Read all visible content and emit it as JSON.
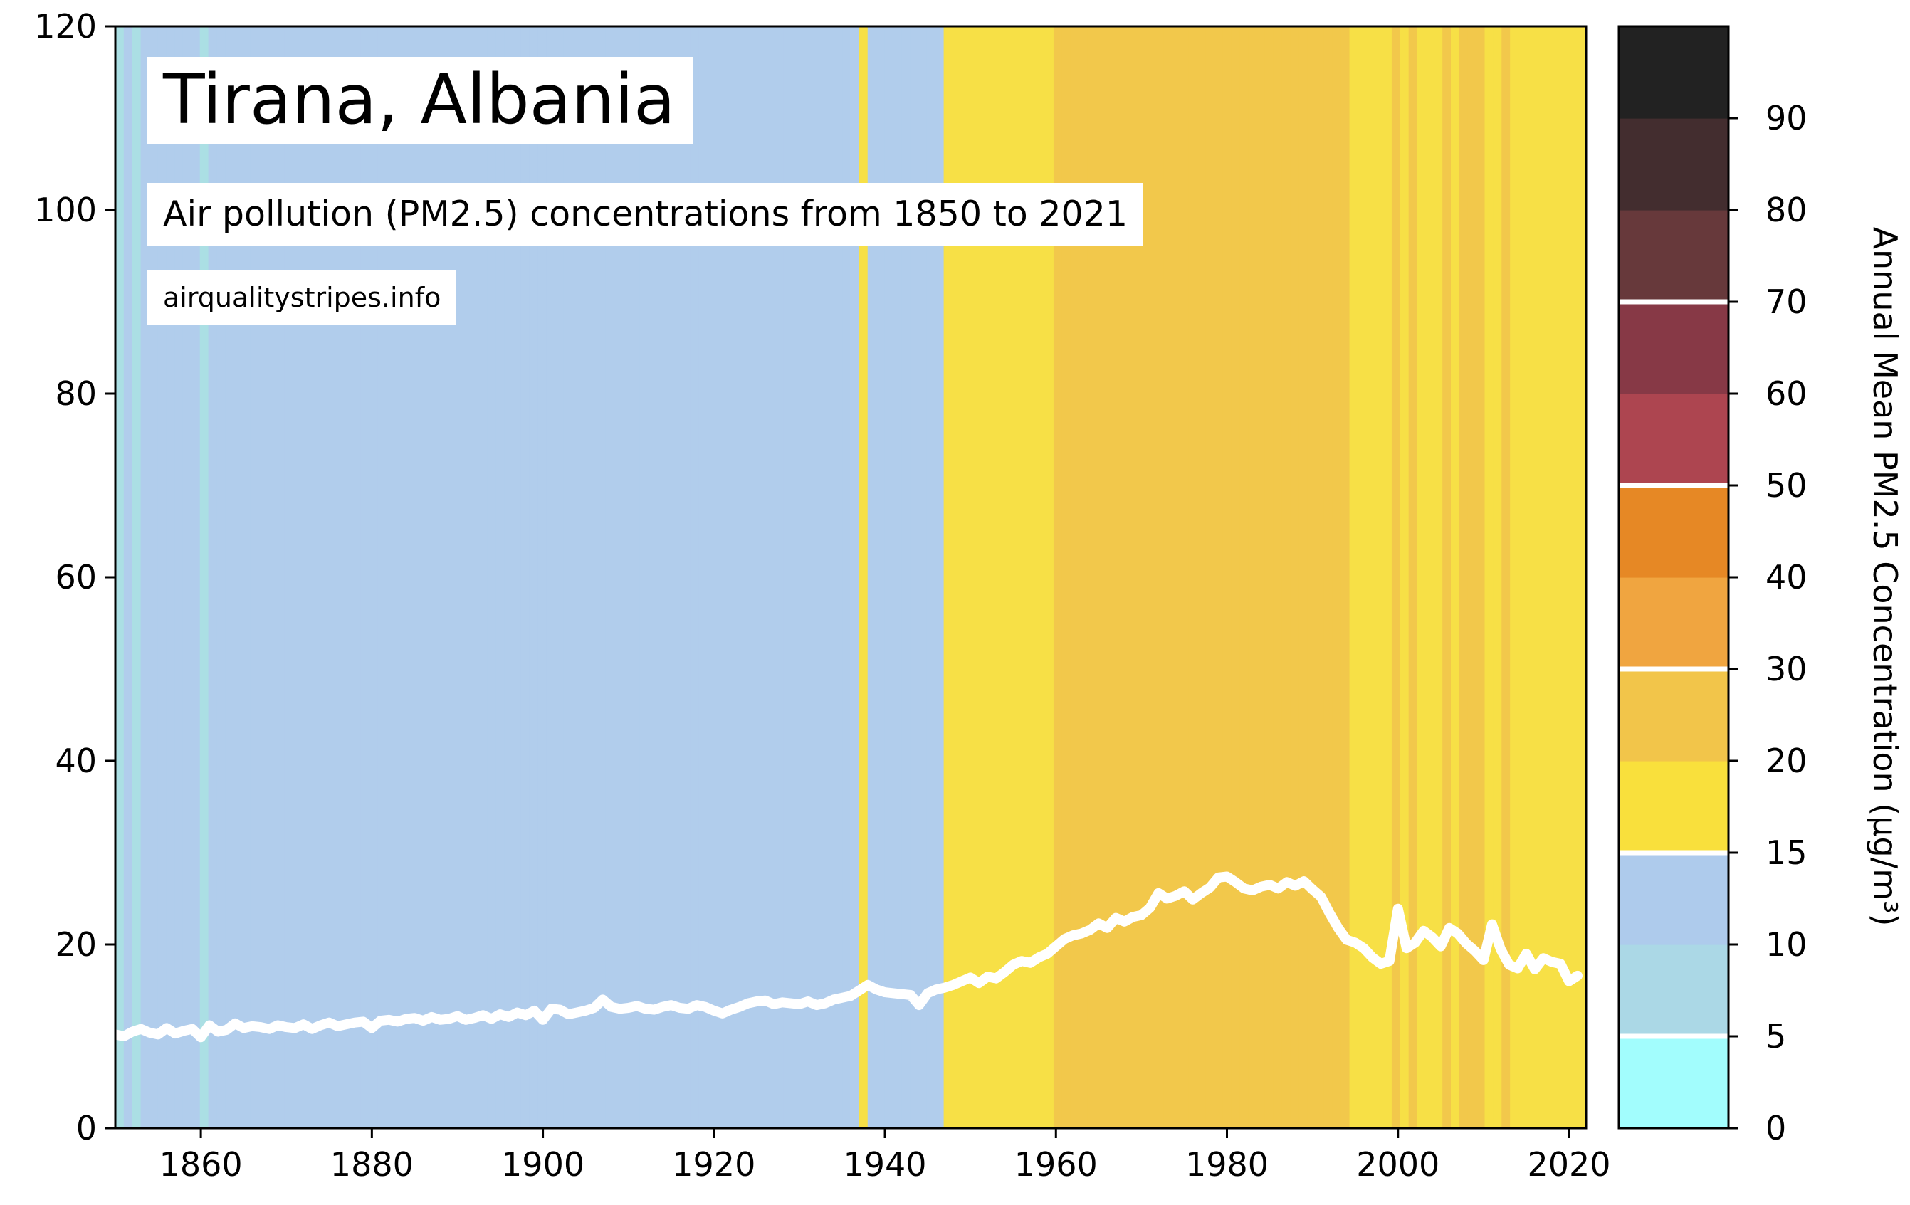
{
  "title": "Tirana, Albania",
  "subtitle": "Air pollution (PM2.5) concentrations from 1850 to 2021",
  "source": "airqualitystripes.info",
  "colorbar_label": "Annual Mean PM2.5 Concentration (µg/m³)",
  "chart_data": {
    "type": "line",
    "xlim": [
      1850,
      2022
    ],
    "ylim": [
      0,
      120
    ],
    "x_ticks": [
      1860,
      1880,
      1900,
      1920,
      1940,
      1960,
      1980,
      2000,
      2020
    ],
    "y_ticks": [
      0,
      20,
      40,
      60,
      80,
      100,
      120
    ],
    "line_color": "#ffffff",
    "grid": false,
    "series": [
      {
        "x": [
          1850,
          1851,
          1852,
          1853,
          1854,
          1855,
          1856,
          1857,
          1858,
          1859,
          1860,
          1861,
          1862,
          1863,
          1864,
          1865,
          1866,
          1867,
          1868,
          1869,
          1870,
          1871,
          1872,
          1873,
          1874,
          1875,
          1876,
          1877,
          1878,
          1879,
          1880,
          1881,
          1882,
          1883,
          1884,
          1885,
          1886,
          1887,
          1888,
          1889,
          1890,
          1891,
          1892,
          1893,
          1894,
          1895,
          1896,
          1897,
          1898,
          1899,
          1900,
          1901,
          1902,
          1903,
          1904,
          1905,
          1906,
          1907,
          1908,
          1909,
          1910,
          1911,
          1912,
          1913,
          1914,
          1915,
          1916,
          1917,
          1918,
          1919,
          1920,
          1921,
          1922,
          1923,
          1924,
          1925,
          1926,
          1927,
          1928,
          1929,
          1930,
          1931,
          1932,
          1933,
          1934,
          1935,
          1936,
          1937,
          1938,
          1939,
          1940,
          1941,
          1942,
          1943,
          1944,
          1945,
          1946,
          1947,
          1948,
          1949,
          1950,
          1951,
          1952,
          1953,
          1954,
          1955,
          1956,
          1957,
          1958,
          1959,
          1960,
          1961,
          1962,
          1963,
          1964,
          1965,
          1966,
          1967,
          1968,
          1969,
          1970,
          1971,
          1972,
          1973,
          1974,
          1975,
          1976,
          1977,
          1978,
          1979,
          1980,
          1981,
          1982,
          1983,
          1984,
          1985,
          1986,
          1987,
          1988,
          1989,
          1990,
          1991,
          1992,
          1993,
          1994,
          1995,
          1996,
          1997,
          1998,
          1999,
          2000,
          2001,
          2002,
          2003,
          2004,
          2005,
          2006,
          2007,
          2008,
          2009,
          2010,
          2011,
          2012,
          2013,
          2014,
          2015,
          2016,
          2017,
          2018,
          2019,
          2020,
          2021
        ],
        "y": [
          10.2,
          10.0,
          10.5,
          10.8,
          10.4,
          10.2,
          10.9,
          10.3,
          10.6,
          10.8,
          9.9,
          11.2,
          10.5,
          10.7,
          11.4,
          10.9,
          11.1,
          11.0,
          10.8,
          11.2,
          11.0,
          10.9,
          11.3,
          10.8,
          11.2,
          11.5,
          11.1,
          11.3,
          11.5,
          11.6,
          10.9,
          11.7,
          11.8,
          11.6,
          11.9,
          12.0,
          11.7,
          12.1,
          11.8,
          11.9,
          12.2,
          11.8,
          12.0,
          12.3,
          11.9,
          12.4,
          12.1,
          12.6,
          12.3,
          12.8,
          11.8,
          13.0,
          12.9,
          12.4,
          12.6,
          12.8,
          13.1,
          14.0,
          13.2,
          13.0,
          13.1,
          13.3,
          13.0,
          12.9,
          13.2,
          13.4,
          13.1,
          13.0,
          13.4,
          13.2,
          12.8,
          12.5,
          12.9,
          13.2,
          13.6,
          13.8,
          13.9,
          13.5,
          13.7,
          13.6,
          13.5,
          13.8,
          13.4,
          13.6,
          14.0,
          14.2,
          14.4,
          15.0,
          15.6,
          15.1,
          14.8,
          14.7,
          14.6,
          14.5,
          13.4,
          14.7,
          15.1,
          15.3,
          15.6,
          16.0,
          16.4,
          15.8,
          16.5,
          16.3,
          17.0,
          17.8,
          18.2,
          18.0,
          18.6,
          19.0,
          19.8,
          20.6,
          21.0,
          21.2,
          21.6,
          22.3,
          21.8,
          22.9,
          22.5,
          23.0,
          23.2,
          24.0,
          25.6,
          25.0,
          25.3,
          25.8,
          24.9,
          25.6,
          26.2,
          27.3,
          27.4,
          26.8,
          26.1,
          25.9,
          26.3,
          26.5,
          26.1,
          26.8,
          26.4,
          26.9,
          26.0,
          25.2,
          23.4,
          21.8,
          20.5,
          20.2,
          19.6,
          18.6,
          17.9,
          18.2,
          23.9,
          19.6,
          20.2,
          21.5,
          20.8,
          19.8,
          21.8,
          21.2,
          20.1,
          19.3,
          18.3,
          22.2,
          19.5,
          17.8,
          17.4,
          19.0,
          17.3,
          18.5,
          18.1,
          17.9,
          16.0,
          16.6
        ]
      }
    ],
    "stripe_colors": [
      "#abdfe4",
      "#b1cdec",
      "#abdfe4",
      "#b1cdec",
      "#b1cdec",
      "#b1cdec",
      "#b1cdec",
      "#b1cdec",
      "#b1cdec",
      "#b1cdec",
      "#abdfe4",
      "#b1cdec",
      "#b1cdec",
      "#b1cdec",
      "#b1cdec",
      "#b1cdec",
      "#b1cdec",
      "#b1cdec",
      "#b1cdec",
      "#b1cdec",
      "#b1cdec",
      "#b1cdec",
      "#b1cdec",
      "#b1cdec",
      "#b1cdec",
      "#b1cdec",
      "#b1cdec",
      "#b1cdec",
      "#b1cdec",
      "#b1cdec",
      "#b1cdec",
      "#b1cdec",
      "#b1cdec",
      "#b1cdec",
      "#b1cdec",
      "#b1cdec",
      "#b1cdec",
      "#b1cdec",
      "#b1cdec",
      "#b1cdec",
      "#b1cdec",
      "#b1cdec",
      "#b1cdec",
      "#b1cdec",
      "#b1cdec",
      "#b1cdec",
      "#b1cdec",
      "#b1cdec",
      "#b1cdec",
      "#b1cdec",
      "#b1cdec",
      "#b1cdec",
      "#b1cdec",
      "#b1cdec",
      "#b1cdec",
      "#b1cdec",
      "#b1cdec",
      "#b1cdec",
      "#b1cdec",
      "#b1cdec",
      "#b1cdec",
      "#b1cdec",
      "#b1cdec",
      "#b1cdec",
      "#b1cdec",
      "#b1cdec",
      "#b1cdec",
      "#b1cdec",
      "#b1cdec",
      "#b1cdec",
      "#b1cdec",
      "#b1cdec",
      "#b1cdec",
      "#b1cdec",
      "#b1cdec",
      "#b1cdec",
      "#b1cdec",
      "#b1cdec",
      "#b1cdec",
      "#b1cdec",
      "#b1cdec",
      "#b1cdec",
      "#b1cdec",
      "#b1cdec",
      "#b1cdec",
      "#b1cdec",
      "#b1cdec",
      "#b1cdec",
      "#f7e046",
      "#b1cdec",
      "#b1cdec",
      "#b1cdec",
      "#b1cdec",
      "#b1cdec",
      "#b1cdec",
      "#b1cdec",
      "#b1cdec",
      "#b1cdec",
      "#f7e046",
      "#f7e046",
      "#f7e046",
      "#f7e046",
      "#f7e046",
      "#f7e046",
      "#f7e046",
      "#f7e046",
      "#f7e046",
      "#f7e046",
      "#f7e046",
      "#f7e046",
      "#f7e046",
      "#f2c84b",
      "#f2c84b",
      "#f2c84b",
      "#f2c84b",
      "#f2c84b",
      "#f2c84b",
      "#f2c84b",
      "#f2c84b",
      "#f2c84b",
      "#f2c84b",
      "#f2c84b",
      "#f2c84b",
      "#f2c84b",
      "#f2c84b",
      "#f2c84b",
      "#f2c84b",
      "#f2c84b",
      "#f2c84b",
      "#f2c84b",
      "#f2c84b",
      "#f2c84b",
      "#f2c84b",
      "#f2c84b",
      "#f2c84b",
      "#f2c84b",
      "#f2c84b",
      "#f2c84b",
      "#f2c84b",
      "#f2c84b",
      "#f2c84b",
      "#f2c84b",
      "#f2c84b",
      "#f2c84b",
      "#f2c84b",
      "#f2c84b",
      "#f7e046",
      "#f7e046",
      "#f7e046",
      "#f7e046",
      "#f7e046",
      "#f2c84b",
      "#f7e046",
      "#f2c84b",
      "#f7e046",
      "#f7e046",
      "#f7e046",
      "#f2c84b",
      "#f7e046",
      "#f2c84b",
      "#f2c84b",
      "#f2c84b",
      "#f7e046",
      "#f7e046",
      "#f2c84b",
      "#f7e046",
      "#f7e046",
      "#f7e046",
      "#f7e046",
      "#f7e046",
      "#f7e046",
      "#f7e046",
      "#f7e046",
      "#f7e046"
    ],
    "colorbar": {
      "tick_values": [
        0,
        5,
        10,
        15,
        20,
        30,
        40,
        50,
        60,
        70,
        80,
        90
      ],
      "tick_labels": [
        "0",
        "5",
        "10",
        "15",
        "20",
        "30",
        "40",
        "50",
        "60",
        "70",
        "80",
        "90"
      ],
      "bands": [
        {
          "from": 0,
          "to": 5,
          "color": "#a2fdfd"
        },
        {
          "from": 5,
          "to": 10,
          "color": "#abd8e6"
        },
        {
          "from": 10,
          "to": 15,
          "color": "#aecbec"
        },
        {
          "from": 15,
          "to": 20,
          "color": "#f9e03c"
        },
        {
          "from": 20,
          "to": 30,
          "color": "#f2c54a"
        },
        {
          "from": 30,
          "to": 40,
          "color": "#f0a540"
        },
        {
          "from": 40,
          "to": 50,
          "color": "#e68825"
        },
        {
          "from": 50,
          "to": 60,
          "color": "#ad4550"
        },
        {
          "from": 60,
          "to": 70,
          "color": "#873946"
        },
        {
          "from": 70,
          "to": 80,
          "color": "#67393b"
        },
        {
          "from": 80,
          "to": 90,
          "color": "#432d2f"
        },
        {
          "from": 90,
          "to": 100,
          "color": "#222222"
        }
      ],
      "separators": [
        5,
        15,
        30,
        50,
        70
      ]
    }
  }
}
